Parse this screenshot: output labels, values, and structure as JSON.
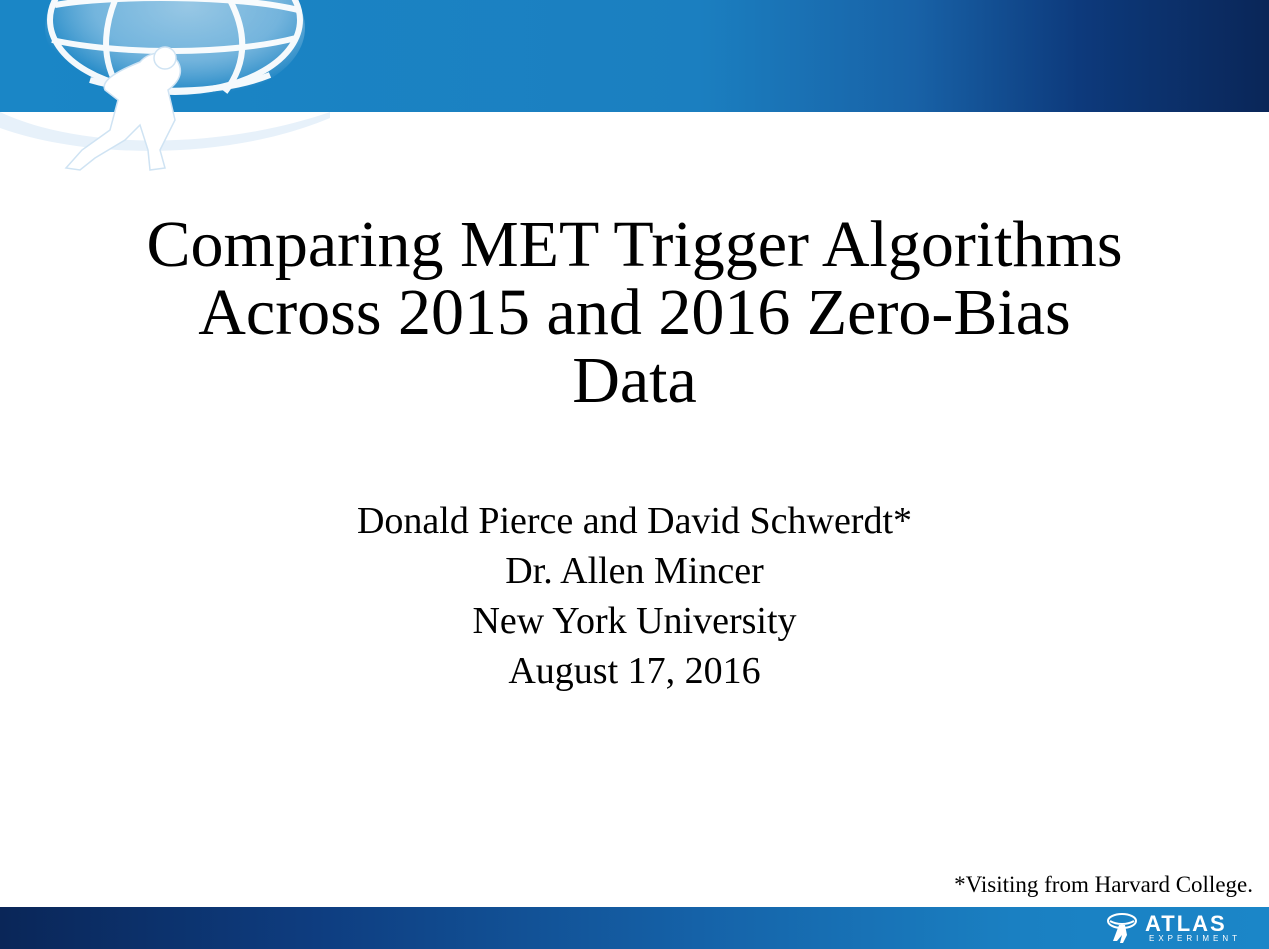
{
  "slide": {
    "title": "Comparing MET Trigger Algorithms\nAcross 2015 and 2016 Zero-Bias\nData",
    "authors": "Donald Pierce and David Schwerdt*",
    "advisor": "Dr. Allen Mincer",
    "institution": "New York University",
    "date": "August 17, 2016",
    "footnote": "*Visiting from Harvard College."
  },
  "branding": {
    "logo_word": "ATLAS",
    "logo_sub": "EXPERIMENT",
    "banner_color_light": "#1a86c6",
    "banner_color_dark": "#0a2658"
  }
}
